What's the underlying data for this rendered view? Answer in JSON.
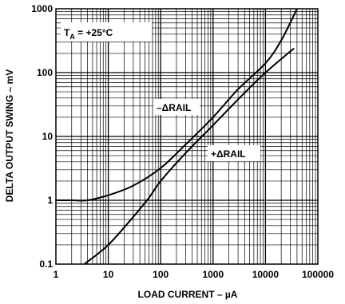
{
  "chart_data": {
    "type": "line",
    "xscale": "log",
    "yscale": "log",
    "xlim": [
      1,
      100000
    ],
    "ylim": [
      0.1,
      1000
    ],
    "xlabel": "LOAD CURRENT – µA",
    "ylabel": "DELTA OUTPUT SWING – mV",
    "grid": true,
    "x_tick_labels": [
      "1",
      "10",
      "100",
      "1000",
      "10000",
      "100000"
    ],
    "y_tick_labels": [
      "0.1",
      "1",
      "10",
      "100",
      "1000"
    ],
    "condition_label": {
      "main": "T",
      "sub": "A",
      "rest": " = +25°C"
    },
    "series": [
      {
        "name": "–ΔRAIL",
        "points": [
          [
            1,
            1.0
          ],
          [
            2,
            1.0
          ],
          [
            4,
            1.0
          ],
          [
            10,
            1.2
          ],
          [
            30,
            1.7
          ],
          [
            100,
            3.2
          ],
          [
            300,
            7.5
          ],
          [
            1000,
            20
          ],
          [
            3000,
            55
          ],
          [
            10000,
            140
          ],
          [
            20000,
            320
          ],
          [
            40000,
            1000
          ]
        ]
      },
      {
        "name": "+ΔRAIL",
        "points": [
          [
            3.5,
            0.1
          ],
          [
            10,
            0.2
          ],
          [
            30,
            0.55
          ],
          [
            60,
            1.1
          ],
          [
            100,
            2.0
          ],
          [
            300,
            5.5
          ],
          [
            1000,
            15
          ],
          [
            3000,
            38
          ],
          [
            10000,
            100
          ],
          [
            35000,
            240
          ]
        ]
      }
    ]
  }
}
